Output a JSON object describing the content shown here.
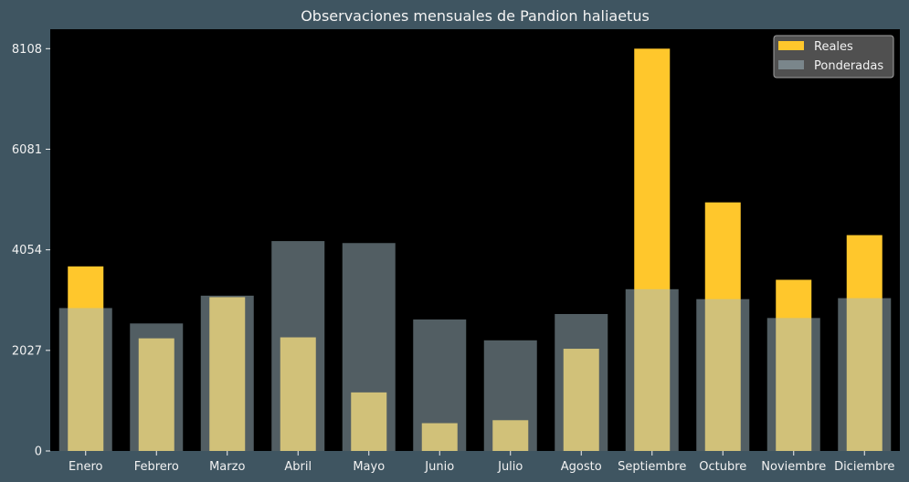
{
  "chart_data": {
    "type": "bar",
    "title": "Observaciones mensuales de Pandion haliaetus",
    "xlabel": "",
    "ylabel": "",
    "categories": [
      "Enero",
      "Febrero",
      "Marzo",
      "Abril",
      "Mayo",
      "Junio",
      "Julio",
      "Agosto",
      "Septiembre",
      "Octubre",
      "Noviembre",
      "Diciembre"
    ],
    "series": [
      {
        "name": "Reales",
        "color": "#ffc72c",
        "values": [
          3720,
          2270,
          3100,
          2290,
          1180,
          560,
          620,
          2060,
          8108,
          5010,
          3450,
          4350
        ]
      },
      {
        "name": "Ponderadas",
        "color": "#a4bcc5",
        "values": [
          2880,
          2570,
          3130,
          4230,
          4190,
          2650,
          2230,
          2760,
          3260,
          3060,
          2680,
          3080
        ]
      }
    ],
    "ylim": [
      0,
      8500
    ],
    "yticks": [
      0,
      2027,
      4054,
      6081,
      8108
    ],
    "ytick_labels": [
      "0",
      "2027",
      "4054",
      "6081",
      "8108"
    ],
    "grid": false,
    "legend_position": "top-right",
    "colors": {
      "background": "#3f5561",
      "plot_area": "#000000",
      "text": "#f2f2f2",
      "legend_bg": "#595959"
    }
  }
}
